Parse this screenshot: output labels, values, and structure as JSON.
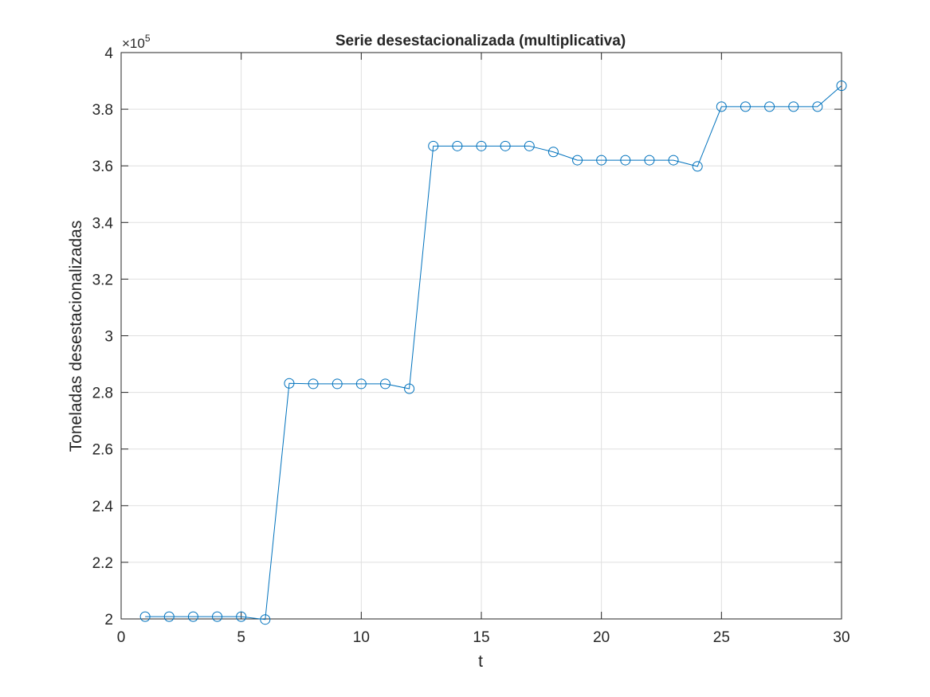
{
  "chart_data": {
    "type": "line",
    "title": "Serie desestacionalizada (multiplicativa)",
    "xlabel": "t",
    "ylabel": "Toneladas desestacionalizadas",
    "y_exponent_label": "×10",
    "y_exponent_power": "5",
    "xlim": [
      0,
      30
    ],
    "ylim": [
      200000,
      400000
    ],
    "x_ticks": [
      0,
      5,
      10,
      15,
      20,
      25,
      30
    ],
    "y_ticks": [
      200000,
      220000,
      240000,
      260000,
      280000,
      300000,
      320000,
      340000,
      360000,
      380000,
      400000
    ],
    "x_tick_labels": [
      "0",
      "5",
      "10",
      "15",
      "20",
      "25",
      "30"
    ],
    "y_tick_labels": [
      "2",
      "2.2",
      "2.4",
      "2.6",
      "2.8",
      "3",
      "3.2",
      "3.4",
      "3.6",
      "3.8",
      "4"
    ],
    "grid": true,
    "line_color": "#0072BD",
    "marker": "circle",
    "series": [
      {
        "x": [
          1,
          2,
          3,
          4,
          5,
          6,
          7,
          8,
          9,
          10,
          11,
          12,
          13,
          14,
          15,
          16,
          17,
          18,
          19,
          20,
          21,
          22,
          23,
          24,
          25,
          26,
          27,
          28,
          29,
          30
        ],
        "y": [
          200800,
          200800,
          200800,
          200800,
          200800,
          199800,
          283200,
          283000,
          283000,
          283000,
          283000,
          281300,
          367000,
          367000,
          367000,
          367000,
          367000,
          364900,
          362000,
          362000,
          362000,
          362000,
          362000,
          359800,
          380900,
          380900,
          380900,
          380900,
          380900,
          388300
        ]
      }
    ]
  }
}
